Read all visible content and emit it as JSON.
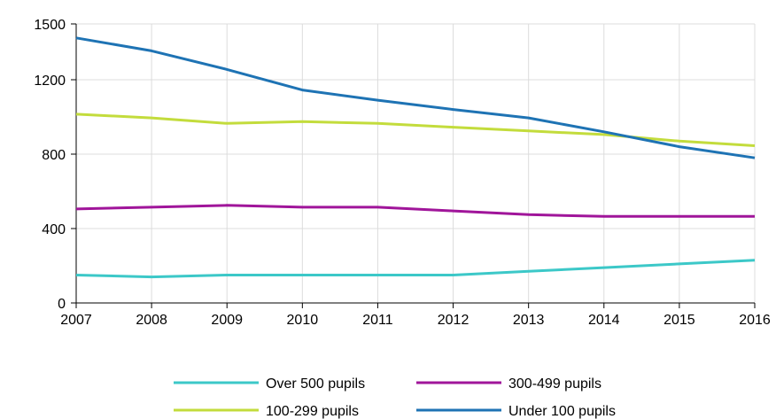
{
  "chart_data": {
    "type": "line",
    "x": [
      2007,
      2008,
      2009,
      2010,
      2011,
      2012,
      2013,
      2014,
      2015,
      2016
    ],
    "xlim": [
      2007,
      2016
    ],
    "ylim": [
      0,
      1500
    ],
    "yticks": [
      0,
      400,
      800,
      1200,
      1500
    ],
    "grid": true,
    "legend_position": "bottom",
    "series": [
      {
        "name": "Over 500 pupils",
        "color": "#3cc8c8",
        "values": [
          150,
          140,
          150,
          150,
          150,
          150,
          170,
          190,
          210,
          230
        ]
      },
      {
        "name": "300-499 pupils",
        "color": "#a0159a",
        "values": [
          505,
          515,
          525,
          515,
          515,
          495,
          475,
          465,
          465,
          465
        ]
      },
      {
        "name": "100-299 pupils",
        "color": "#c3dc3c",
        "values": [
          1015,
          995,
          965,
          975,
          965,
          945,
          925,
          905,
          870,
          845
        ]
      },
      {
        "name": "Under 100 pupils",
        "color": "#1e73b4",
        "values": [
          1425,
          1355,
          1255,
          1145,
          1090,
          1040,
          995,
          920,
          840,
          780
        ]
      }
    ]
  }
}
